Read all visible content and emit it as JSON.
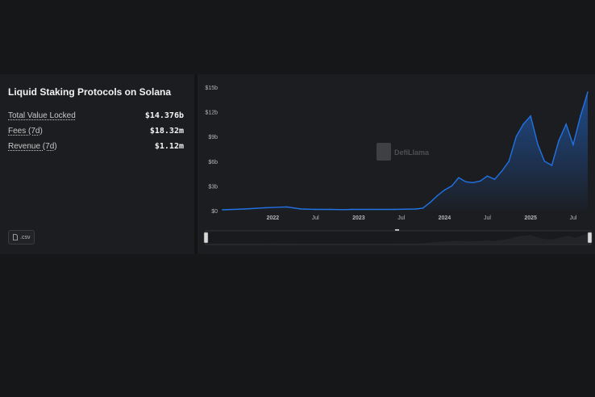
{
  "panel": {
    "title": "Liquid Staking Protocols on Solana",
    "metrics": [
      {
        "label": "Total Value Locked",
        "value": "$14.376b"
      },
      {
        "label": "Fees (7d)",
        "value": "$18.32m"
      },
      {
        "label": "Revenue (7d)",
        "value": "$1.12m"
      }
    ],
    "csv_label": ".csv"
  },
  "watermark": {
    "text": "DefiLlama"
  },
  "colors": {
    "line": "#2172e5",
    "background": "#1c1d20"
  },
  "chart_data": {
    "type": "area",
    "ylim": [
      0,
      15
    ],
    "y_ticks": [
      "$0",
      "$3b",
      "$6b",
      "$9b",
      "$12b",
      "$15b"
    ],
    "x_ticks": [
      "2022",
      "Jul",
      "2023",
      "Jul",
      "2024",
      "Jul",
      "2025",
      "Jul"
    ],
    "grid": false,
    "legend": "none",
    "series": [
      {
        "x": [
          "2021-06",
          "2021-09",
          "2021-12",
          "2022-03",
          "2022-05",
          "2022-07",
          "2022-09",
          "2022-11",
          "2022-12",
          "2023-03",
          "2023-06",
          "2023-09",
          "2023-10",
          "2023-11",
          "2023-12",
          "2024-01",
          "2024-02",
          "2024-03",
          "2024-04",
          "2024-05",
          "2024-06",
          "2024-07",
          "2024-08",
          "2024-09",
          "2024-10",
          "2024-11",
          "2024-12",
          "2025-01",
          "2025-02",
          "2025-03",
          "2025-04",
          "2025-05",
          "2025-06",
          "2025-07",
          "2025-08",
          "2025-09"
        ],
        "values": [
          0.1,
          0.2,
          0.35,
          0.45,
          0.2,
          0.15,
          0.15,
          0.12,
          0.15,
          0.15,
          0.15,
          0.2,
          0.3,
          1.0,
          1.8,
          2.5,
          3.0,
          4.0,
          3.5,
          3.4,
          3.6,
          4.2,
          3.8,
          4.8,
          6.0,
          9.0,
          10.5,
          11.5,
          8.0,
          6.0,
          5.5,
          8.5,
          10.5,
          8.0,
          11.5,
          14.4
        ]
      }
    ]
  }
}
